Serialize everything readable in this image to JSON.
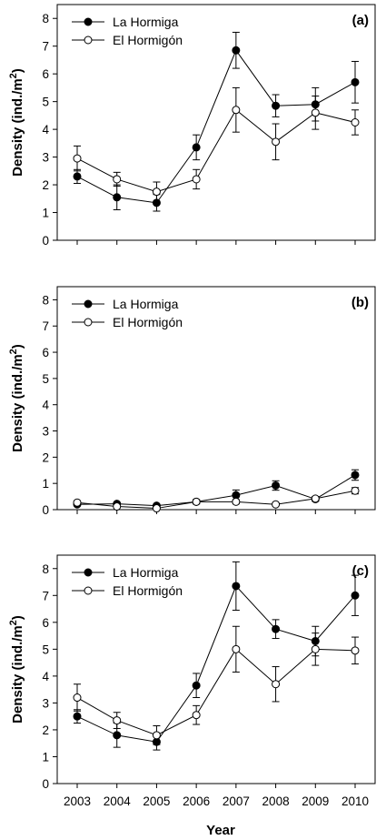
{
  "chart_data": [
    {
      "type": "line",
      "panel_label": "(a)",
      "ylabel": "Density (ind./m",
      "ylabel_sup": "2",
      "ylabel_close": ")",
      "xlabel": "",
      "ylim": [
        0,
        8.5
      ],
      "yticks": [
        0,
        1,
        2,
        3,
        4,
        5,
        6,
        7,
        8
      ],
      "x": [
        2003,
        2004,
        2005,
        2006,
        2007,
        2008,
        2009,
        2010
      ],
      "show_x_tick_labels": false,
      "legend_position": "top-left",
      "series": [
        {
          "name": "La Hormiga",
          "marker": "filled",
          "values": [
            2.3,
            1.55,
            1.35,
            3.35,
            6.85,
            4.85,
            4.9,
            5.7
          ],
          "err": [
            0.25,
            0.45,
            0.3,
            0.45,
            0.65,
            0.4,
            0.6,
            0.75
          ]
        },
        {
          "name": "El Hormigón",
          "marker": "open",
          "values": [
            2.95,
            2.2,
            1.75,
            2.2,
            4.7,
            3.55,
            4.6,
            4.25
          ],
          "err": [
            0.45,
            0.25,
            0.35,
            0.35,
            0.8,
            0.65,
            0.6,
            0.45
          ]
        }
      ]
    },
    {
      "type": "line",
      "panel_label": "(b)",
      "ylabel": "Density (ind./m",
      "ylabel_sup": "2",
      "ylabel_close": ")",
      "xlabel": "",
      "ylim": [
        0,
        8.5
      ],
      "yticks": [
        0,
        1,
        2,
        3,
        4,
        5,
        6,
        7,
        8
      ],
      "x": [
        2003,
        2004,
        2005,
        2006,
        2007,
        2008,
        2009,
        2010
      ],
      "show_x_tick_labels": false,
      "legend_position": "top-left",
      "series": [
        {
          "name": "La Hormiga",
          "marker": "filled",
          "values": [
            0.2,
            0.22,
            0.15,
            0.3,
            0.55,
            0.92,
            0.4,
            1.32
          ],
          "err": [
            0.05,
            0.05,
            0.05,
            0.08,
            0.2,
            0.18,
            0.08,
            0.2
          ]
        },
        {
          "name": "El Hormigón",
          "marker": "open",
          "values": [
            0.27,
            0.12,
            0.05,
            0.3,
            0.3,
            0.2,
            0.42,
            0.72
          ],
          "err": [
            0.05,
            0.05,
            0.03,
            0.08,
            0.08,
            0.05,
            0.08,
            0.12
          ]
        }
      ]
    },
    {
      "type": "line",
      "panel_label": "(c)",
      "ylabel": "Density (ind./m",
      "ylabel_sup": "2",
      "ylabel_close": ")",
      "xlabel": "Year",
      "ylim": [
        0,
        8.5
      ],
      "yticks": [
        0,
        1,
        2,
        3,
        4,
        5,
        6,
        7,
        8
      ],
      "x": [
        2003,
        2004,
        2005,
        2006,
        2007,
        2008,
        2009,
        2010
      ],
      "show_x_tick_labels": true,
      "legend_position": "top-left",
      "series": [
        {
          "name": "La Hormiga",
          "marker": "filled",
          "values": [
            2.5,
            1.8,
            1.55,
            3.65,
            7.35,
            5.75,
            5.3,
            7.0
          ],
          "err": [
            0.25,
            0.45,
            0.3,
            0.45,
            0.9,
            0.35,
            0.55,
            0.75
          ]
        },
        {
          "name": "El Hormigón",
          "marker": "open",
          "values": [
            3.2,
            2.35,
            1.8,
            2.55,
            5.0,
            3.7,
            5.0,
            4.95
          ],
          "err": [
            0.5,
            0.3,
            0.35,
            0.35,
            0.85,
            0.65,
            0.6,
            0.5
          ]
        }
      ]
    }
  ]
}
